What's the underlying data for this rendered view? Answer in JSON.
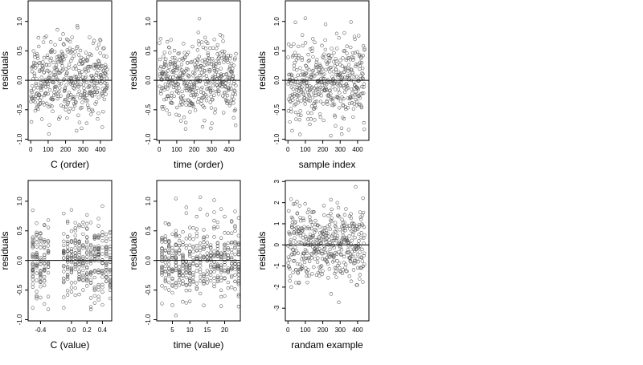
{
  "chart_data": [
    {
      "type": "scatter",
      "title": "",
      "xlabel": "C (order)",
      "ylabel": "residuals",
      "xlim": [
        -15,
        465
      ],
      "ylim": [
        -1.02,
        1.35
      ],
      "x_ticks": [
        0,
        100,
        200,
        300,
        400
      ],
      "x_tick_labels": [
        "0",
        "100",
        "200",
        "300",
        "400"
      ],
      "y_ticks": [
        -1.0,
        -0.5,
        0.0,
        0.5,
        1.0
      ],
      "y_tick_labels": [
        "-1.0",
        "-0.5",
        "0.0",
        "0.5",
        "1.0"
      ],
      "reference_line_y": 0,
      "gen": {
        "kind": "index",
        "n": 440,
        "sd": 0.32,
        "seed": 11
      }
    },
    {
      "type": "scatter",
      "title": "",
      "xlabel": "time (order)",
      "ylabel": "residuals",
      "xlim": [
        -15,
        465
      ],
      "ylim": [
        -1.02,
        1.35
      ],
      "x_ticks": [
        0,
        100,
        200,
        300,
        400
      ],
      "x_tick_labels": [
        "0",
        "100",
        "200",
        "300",
        "400"
      ],
      "y_ticks": [
        -1.0,
        -0.5,
        0.0,
        0.5,
        1.0
      ],
      "y_tick_labels": [
        "-1.0",
        "-0.5",
        "0.0",
        "0.5",
        "1.0"
      ],
      "reference_line_y": 0,
      "gen": {
        "kind": "index",
        "n": 440,
        "sd": 0.32,
        "seed": 23
      }
    },
    {
      "type": "scatter",
      "title": "",
      "xlabel": "sample index",
      "ylabel": "residuals",
      "xlim": [
        -15,
        465
      ],
      "ylim": [
        -1.02,
        1.35
      ],
      "x_ticks": [
        0,
        100,
        200,
        300,
        400
      ],
      "x_tick_labels": [
        "0",
        "100",
        "200",
        "300",
        "400"
      ],
      "y_ticks": [
        -1.0,
        -0.5,
        0.0,
        0.5,
        1.0
      ],
      "y_tick_labels": [
        "-1.0",
        "-0.5",
        "0.0",
        "0.5",
        "1.0"
      ],
      "reference_line_y": 0,
      "gen": {
        "kind": "index",
        "n": 440,
        "sd": 0.34,
        "seed": 37
      }
    },
    {
      "type": "scatter",
      "title": "",
      "xlabel": "C (value)",
      "ylabel": "residuals",
      "xlim": [
        -0.56,
        0.52
      ],
      "ylim": [
        -1.02,
        1.35
      ],
      "x_ticks": [
        -0.4,
        0.0,
        0.2,
        0.4
      ],
      "x_tick_labels": [
        "-0.4",
        "0.0",
        "0.2",
        "0.4"
      ],
      "y_ticks": [
        -1.0,
        -0.5,
        0.0,
        0.5,
        1.0
      ],
      "y_tick_labels": [
        "-1.0",
        "-0.5",
        "0.0",
        "0.5",
        "1.0"
      ],
      "reference_line_y": 0,
      "gen": {
        "kind": "levels",
        "levels": [
          -0.5,
          -0.45,
          -0.4,
          -0.35,
          -0.3,
          -0.1,
          -0.05,
          0.0,
          0.05,
          0.1,
          0.15,
          0.2,
          0.25,
          0.3,
          0.35,
          0.4,
          0.45,
          0.5
        ],
        "n": 440,
        "sd": 0.32,
        "seed": 51
      }
    },
    {
      "type": "scatter",
      "title": "",
      "xlabel": "time (value)",
      "ylabel": "residuals",
      "xlim": [
        0.5,
        24.5
      ],
      "ylim": [
        -1.02,
        1.35
      ],
      "x_ticks": [
        5,
        10,
        15,
        20
      ],
      "x_tick_labels": [
        "5",
        "10",
        "15",
        "20"
      ],
      "y_ticks": [
        -1.0,
        -0.5,
        0.0,
        0.5,
        1.0
      ],
      "y_tick_labels": [
        "-1.0",
        "-0.5",
        "0.0",
        "0.5",
        "1.0"
      ],
      "reference_line_y": 0,
      "gen": {
        "kind": "levels",
        "levels": [
          2,
          3,
          4,
          5,
          6,
          7,
          8,
          9,
          10,
          11,
          12,
          13,
          14,
          15,
          16,
          17,
          18,
          19,
          20,
          21,
          22,
          23,
          24
        ],
        "n": 440,
        "sd": 0.32,
        "seed": 67
      }
    },
    {
      "type": "scatter",
      "title": "",
      "xlabel": "randam example",
      "ylabel": "residuals",
      "xlim": [
        -15,
        465
      ],
      "ylim": [
        -3.6,
        3.05
      ],
      "x_ticks": [
        0,
        100,
        200,
        300,
        400
      ],
      "x_tick_labels": [
        "0",
        "100",
        "200",
        "300",
        "400"
      ],
      "y_ticks": [
        -3,
        -2,
        -1,
        0,
        1,
        2,
        3
      ],
      "y_tick_labels": [
        "-3",
        "-2",
        "-1",
        "0",
        "1",
        "2",
        "3"
      ],
      "reference_line_y": 0,
      "gen": {
        "kind": "index",
        "n": 440,
        "sd": 0.95,
        "seed": 83
      }
    }
  ]
}
